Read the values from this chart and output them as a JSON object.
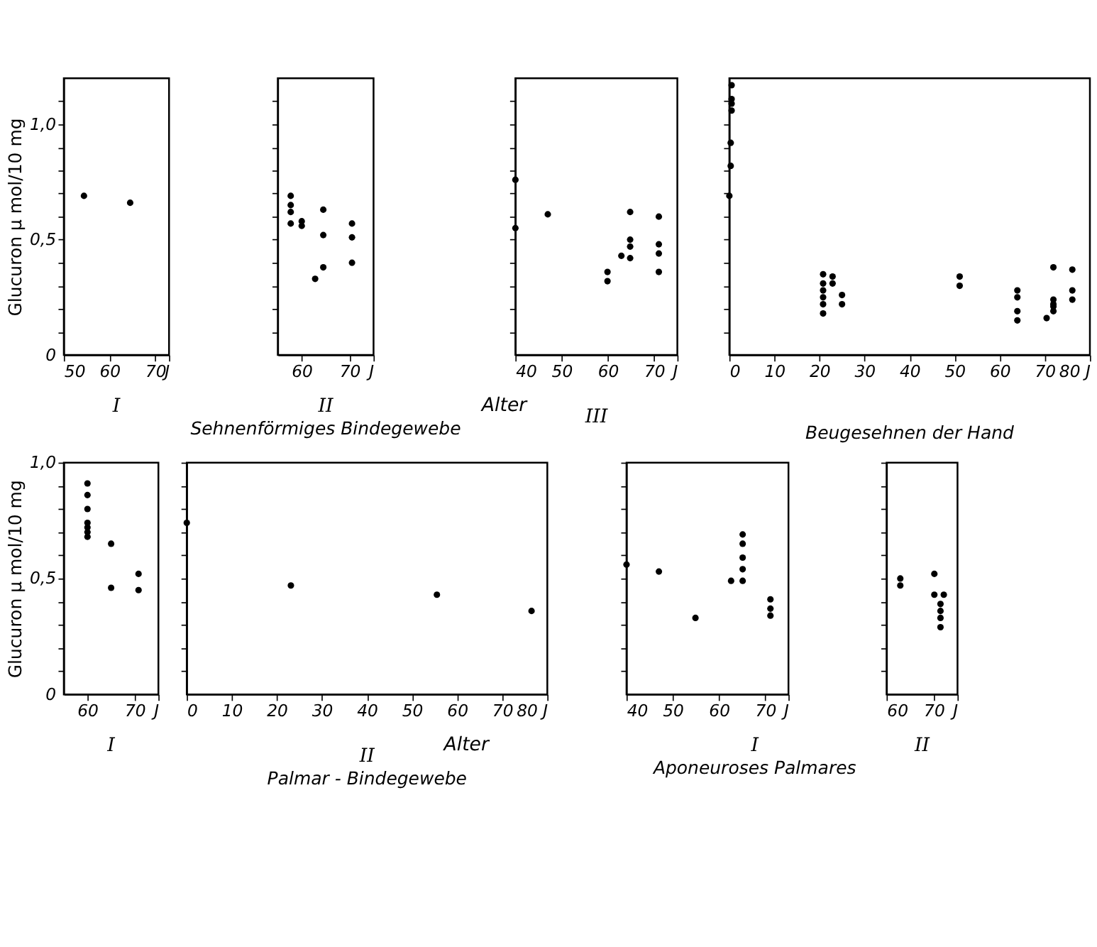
{
  "chart_data": [
    {
      "type": "scatter",
      "title": "I",
      "ylabel": "Glucuron μ mol/10 mg",
      "marker": "circle",
      "grid": false,
      "xlim": [
        50,
        73
      ],
      "ylim": [
        0,
        1.2
      ],
      "xticks": [
        50,
        60,
        70,
        {
          "value": 73,
          "label": "J"
        }
      ],
      "yticks": [
        0,
        {
          "value": 0.1,
          "label": null
        },
        {
          "value": 0.2,
          "label": null
        },
        {
          "value": 0.3,
          "label": null
        },
        {
          "value": 0.4,
          "label": null
        },
        {
          "value": 0.5,
          "label": "0,5"
        },
        {
          "value": 0.6,
          "label": null
        },
        {
          "value": 0.7,
          "label": null
        },
        {
          "value": 0.8,
          "label": null
        },
        {
          "value": 0.9,
          "label": null
        },
        {
          "value": 1.0,
          "label": "1,0"
        },
        {
          "value": 1.1,
          "label": null
        }
      ],
      "x": [
        54.4,
        64.5
      ],
      "series": [
        {
          "color": "#000000",
          "values": [
            0.69,
            0.66
          ]
        }
      ]
    },
    {
      "type": "scatter",
      "title": "II",
      "annotations": [
        "Sehnenförmiges Bindegewebe"
      ],
      "marker": "circle",
      "grid": false,
      "tick_labels": "x",
      "xlim": [
        55,
        75
      ],
      "ylim": [
        0,
        1.2
      ],
      "xticks": [
        60,
        70,
        {
          "value": 75,
          "label": "J"
        }
      ],
      "yticks": [
        0.1,
        0.2,
        0.3,
        0.4,
        0.5,
        0.6,
        0.7,
        0.8,
        0.9,
        1.0,
        1.1
      ],
      "x": [
        57.7,
        57.7,
        57.7,
        57.7,
        60,
        60,
        62.8,
        64.5,
        64.5,
        64.5,
        70.5,
        70.5,
        70.5
      ],
      "series": [
        {
          "color": "#000000",
          "values": [
            0.69,
            0.65,
            0.62,
            0.57,
            0.58,
            0.56,
            0.33,
            0.63,
            0.52,
            0.38,
            0.57,
            0.51,
            0.4
          ]
        }
      ]
    },
    {
      "type": "scatter",
      "title": "III",
      "xlabel": "Alter",
      "marker": "circle",
      "grid": false,
      "tick_labels": "x",
      "xlim": [
        40,
        75
      ],
      "ylim": [
        0,
        1.2
      ],
      "xticks": [
        40,
        50,
        60,
        70,
        {
          "value": 75,
          "label": "J"
        }
      ],
      "yticks": [
        0.1,
        0.2,
        0.3,
        0.4,
        0.5,
        0.6,
        0.7,
        0.8,
        0.9,
        1.0,
        1.1
      ],
      "x": [
        40,
        40,
        47,
        59.9,
        59.9,
        62.9,
        64.8,
        64.8,
        64.8,
        64.8,
        71,
        71,
        71,
        71
      ],
      "series": [
        {
          "color": "#000000",
          "values": [
            0.76,
            0.55,
            0.61,
            0.36,
            0.32,
            0.43,
            0.62,
            0.5,
            0.47,
            0.42,
            0.6,
            0.48,
            0.44,
            0.36
          ]
        }
      ]
    },
    {
      "type": "scatter",
      "annotations": [
        "Beugesehnen der Hand"
      ],
      "marker": "circle",
      "grid": false,
      "tick_labels": "x",
      "xlim": [
        0,
        80
      ],
      "ylim": [
        0,
        1.2
      ],
      "xticks": [
        0,
        10,
        20,
        30,
        40,
        50,
        60,
        70,
        {
          "value": 80,
          "label": "80 J"
        }
      ],
      "yticks": [
        0.1,
        0.2,
        0.3,
        0.4,
        0.5,
        0.6,
        0.7,
        0.8,
        0.9,
        1.0,
        1.1
      ],
      "x": [
        0.5,
        0.5,
        0.5,
        0.5,
        0.3,
        0.3,
        0,
        20.8,
        20.8,
        20.8,
        20.8,
        20.8,
        20.8,
        22.9,
        22.9,
        25,
        25,
        51.1,
        51.1,
        63.9,
        63.9,
        63.9,
        63.9,
        70.4,
        71.9,
        71.9,
        71.9,
        71.9,
        71.9,
        76.1,
        76.1,
        76.1
      ],
      "series": [
        {
          "color": "#000000",
          "values": [
            1.17,
            1.11,
            1.09,
            1.06,
            0.92,
            0.82,
            0.69,
            0.35,
            0.31,
            0.28,
            0.25,
            0.22,
            0.18,
            0.34,
            0.31,
            0.26,
            0.22,
            0.34,
            0.3,
            0.28,
            0.25,
            0.19,
            0.15,
            0.16,
            0.38,
            0.24,
            0.22,
            0.21,
            0.19,
            0.37,
            0.28,
            0.24
          ]
        }
      ]
    },
    {
      "type": "scatter",
      "title": "I",
      "ylabel": "Glucuron μ mol/10 mg",
      "marker": "circle",
      "grid": false,
      "xlim": [
        55,
        75
      ],
      "ylim": [
        0,
        1.0
      ],
      "xticks": [
        60,
        70,
        {
          "value": 75,
          "label": "J"
        }
      ],
      "yticks": [
        0,
        {
          "value": 0.1,
          "label": null
        },
        {
          "value": 0.2,
          "label": null
        },
        {
          "value": 0.3,
          "label": null
        },
        {
          "value": 0.4,
          "label": null
        },
        {
          "value": 0.5,
          "label": "0,5"
        },
        {
          "value": 0.6,
          "label": null
        },
        {
          "value": 0.7,
          "label": null
        },
        {
          "value": 0.8,
          "label": null
        },
        {
          "value": 0.9,
          "label": null
        },
        {
          "value": 1.0,
          "label": "1,0"
        }
      ],
      "x": [
        60,
        60,
        60,
        60,
        60,
        60,
        60,
        65,
        65,
        70.8,
        70.8
      ],
      "series": [
        {
          "color": "#000000",
          "values": [
            0.91,
            0.86,
            0.8,
            0.74,
            0.72,
            0.7,
            0.68,
            0.65,
            0.46,
            0.52,
            0.45
          ]
        }
      ]
    },
    {
      "type": "scatter",
      "title": "II",
      "xlabel": "Alter",
      "annotations": [
        "Palmar - Bindegewebe"
      ],
      "marker": "circle",
      "grid": false,
      "tick_labels": "x",
      "xlim": [
        0,
        80
      ],
      "ylim": [
        0,
        1.0
      ],
      "xticks": [
        0,
        10,
        20,
        30,
        40,
        50,
        60,
        70,
        {
          "value": 80,
          "label": "80 J"
        }
      ],
      "yticks": [
        0.1,
        0.2,
        0.3,
        0.4,
        0.5,
        0.6,
        0.7,
        0.8,
        0.9,
        1.0
      ],
      "x": [
        0,
        23.1,
        55.5,
        76.5
      ],
      "series": [
        {
          "color": "#000000",
          "values": [
            0.74,
            0.47,
            0.43,
            0.36
          ]
        }
      ]
    },
    {
      "type": "scatter",
      "title": "I",
      "annotations": [
        "Aponeuroses Palmares"
      ],
      "marker": "circle",
      "grid": false,
      "tick_labels": "x",
      "xlim": [
        40,
        75
      ],
      "ylim": [
        0,
        1.0
      ],
      "xticks": [
        40,
        50,
        60,
        70,
        {
          "value": 75,
          "label": "J"
        }
      ],
      "yticks": [
        0.1,
        0.2,
        0.3,
        0.4,
        0.5,
        0.6,
        0.7,
        0.8,
        0.9,
        1.0
      ],
      "x": [
        40,
        47,
        54.9,
        62.6,
        65.1,
        65.1,
        65.1,
        65.1,
        65.1,
        71.1,
        71.1,
        71.1
      ],
      "series": [
        {
          "color": "#000000",
          "values": [
            0.56,
            0.53,
            0.33,
            0.49,
            0.69,
            0.65,
            0.59,
            0.54,
            0.49,
            0.41,
            0.37,
            0.34
          ]
        }
      ]
    },
    {
      "type": "scatter",
      "title": "II",
      "marker": "circle",
      "grid": false,
      "tick_labels": "x",
      "xlim": [
        60,
        75
      ],
      "ylim": [
        0,
        1.0
      ],
      "xticks": [
        60,
        70,
        {
          "value": 75,
          "label": "J"
        }
      ],
      "yticks": [
        0.1,
        0.2,
        0.3,
        0.4,
        0.5,
        0.6,
        0.7,
        0.8,
        0.9,
        1.0
      ],
      "x": [
        62.9,
        62.9,
        70.1,
        70.1,
        71.4,
        71.4,
        71.4,
        71.4,
        72.1
      ],
      "series": [
        {
          "color": "#000000",
          "values": [
            0.5,
            0.47,
            0.52,
            0.43,
            0.39,
            0.36,
            0.33,
            0.29,
            0.43
          ]
        }
      ]
    }
  ]
}
